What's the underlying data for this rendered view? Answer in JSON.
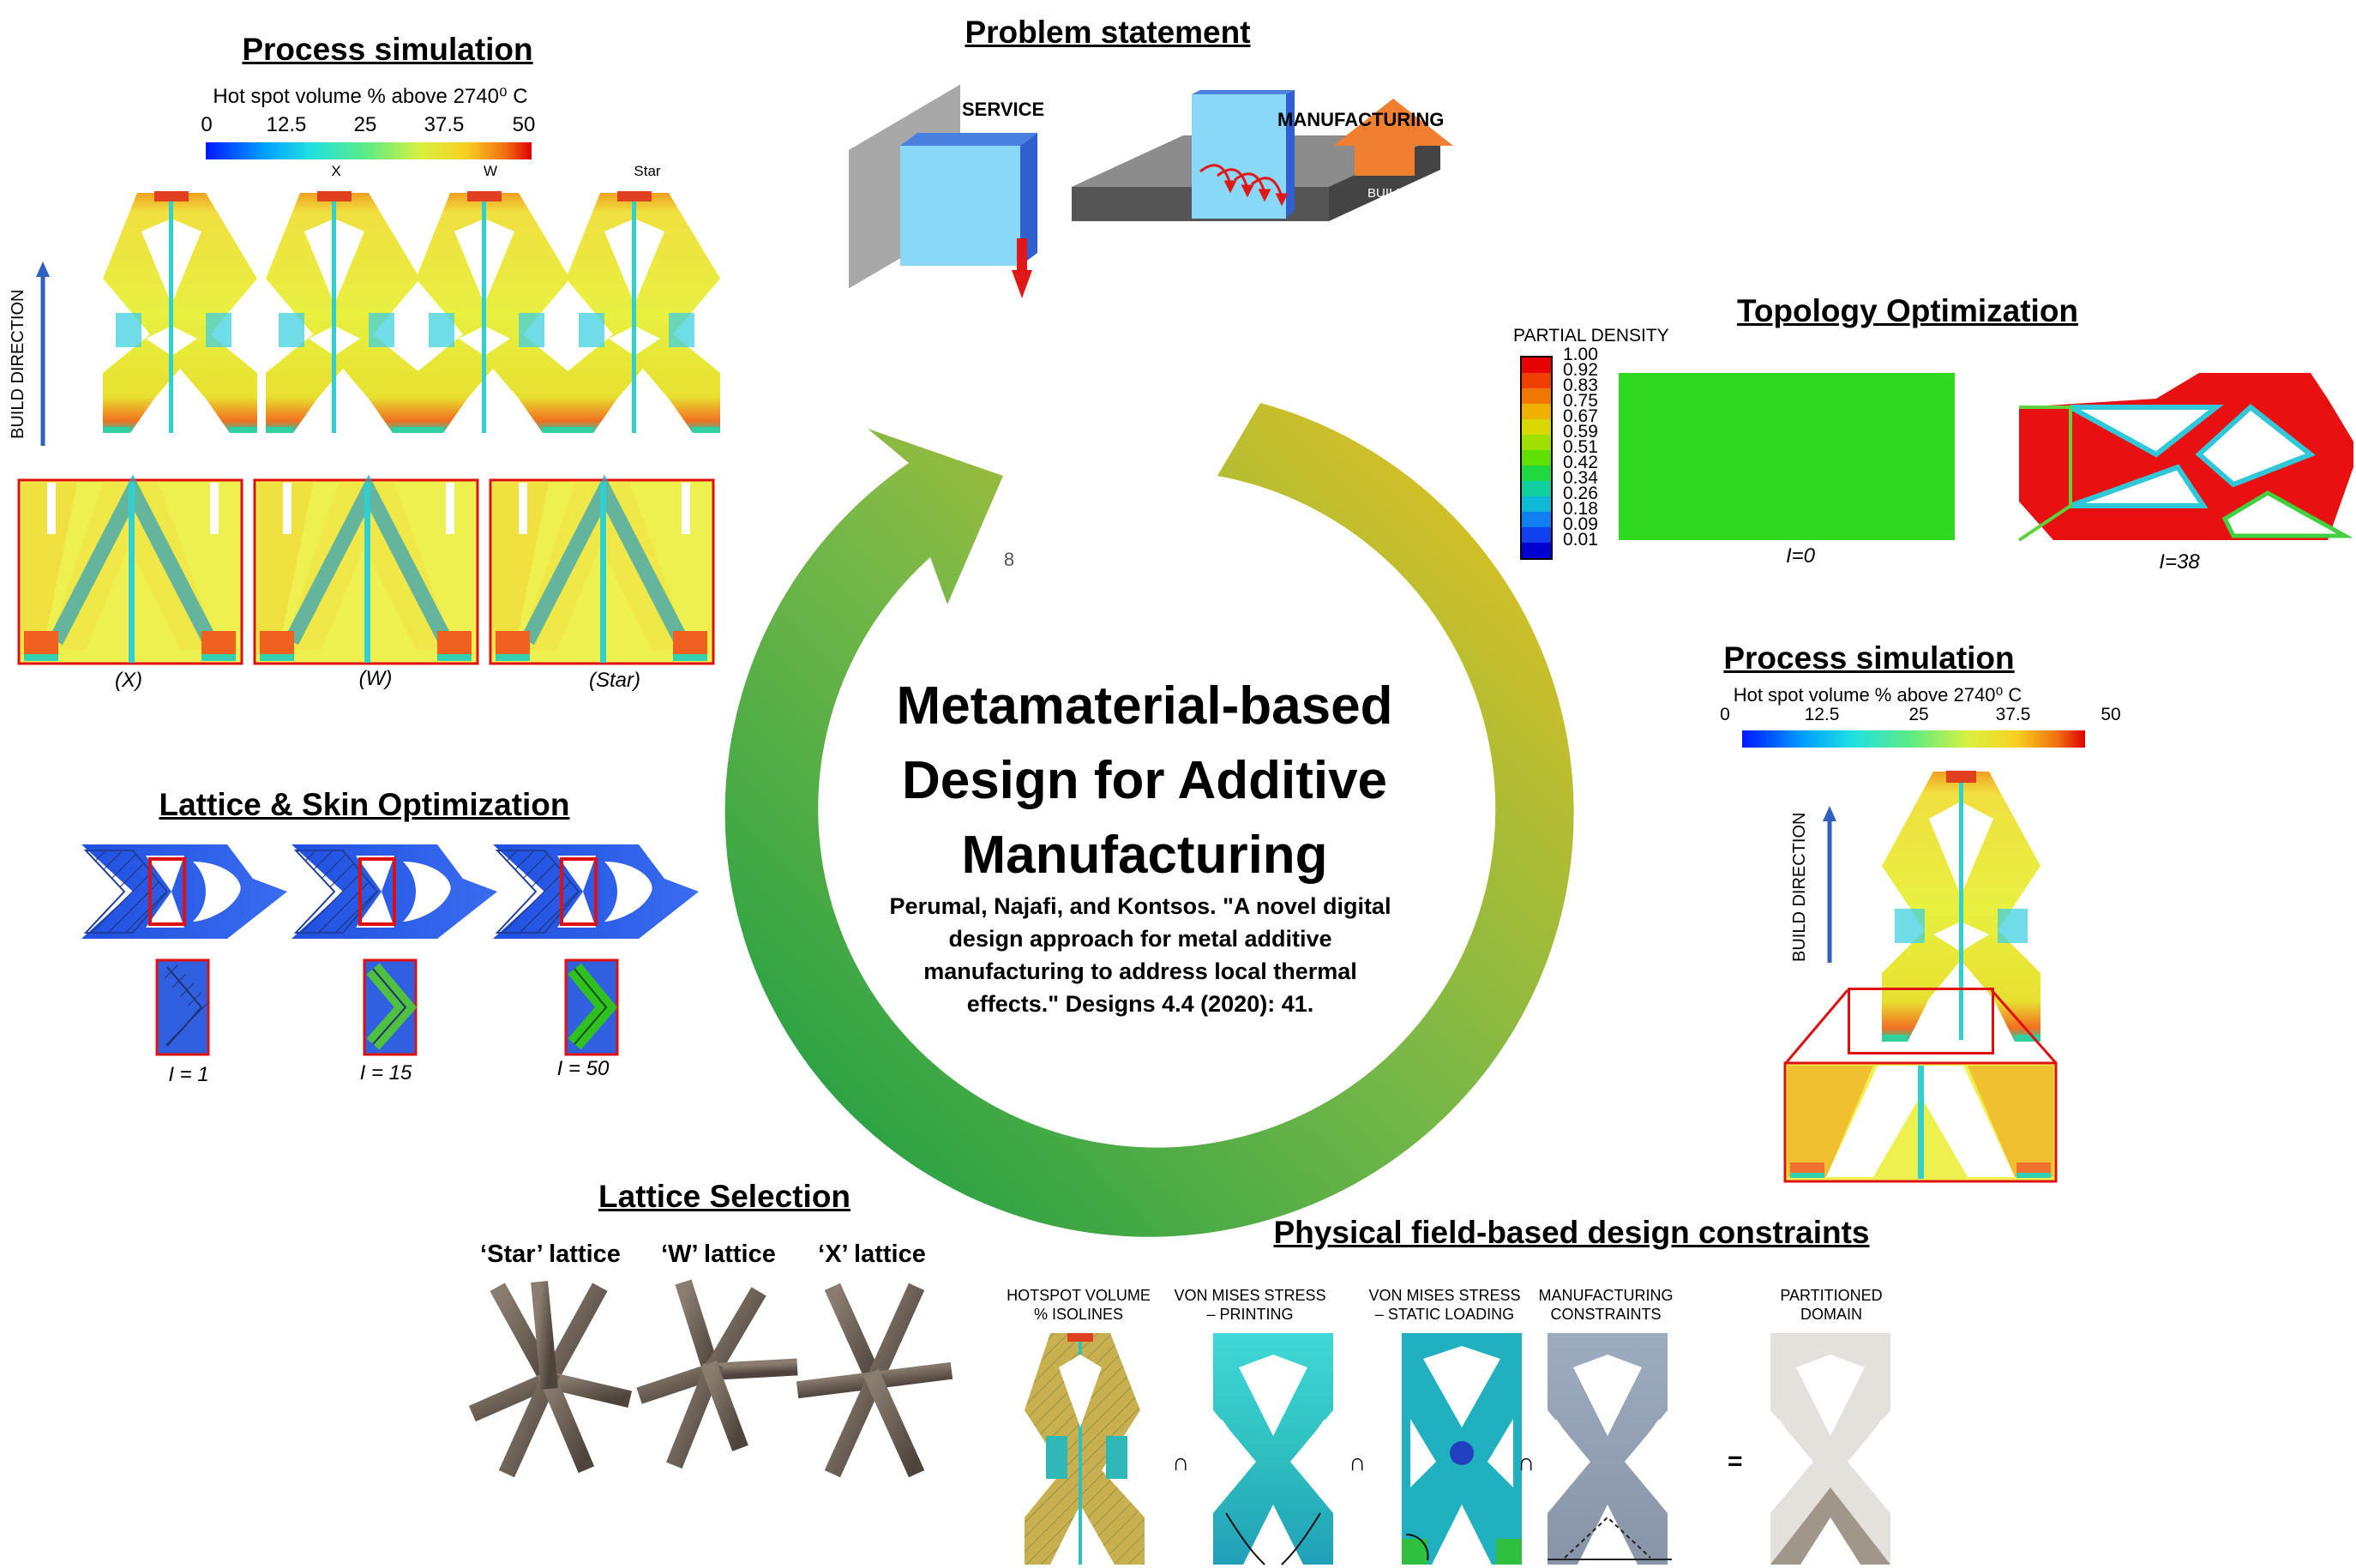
{
  "center": {
    "title_lines": [
      "Metamaterial-based",
      "Design for Additive",
      "Manufacturing"
    ],
    "citation_lines": [
      "Perumal, Najafi, and Kontsos. \"A novel digital",
      "design approach for metal additive",
      "manufacturing to address local thermal",
      "effects.\" Designs 4.4 (2020): 41."
    ],
    "cycle_number": "8"
  },
  "problem": {
    "title": "Problem statement",
    "service_label": "SERVICE",
    "manufacturing_label": "MANUFACTURING",
    "build_label": "BUILD"
  },
  "process_top": {
    "title": "Process simulation",
    "legend_title": "Hot spot volume % above 2740⁰ C",
    "ticks": [
      "0",
      "12.5",
      "25",
      "37.5",
      "50"
    ],
    "lattice_labels": [
      "X",
      "W",
      "Star"
    ],
    "build_direction": "BUILD DIRECTION",
    "captions": [
      "(X)",
      "(W)",
      "(Star)"
    ]
  },
  "topology": {
    "title": "Topology Optimization",
    "legend_title": "PARTIAL DENSITY",
    "legend_values": [
      "1.00",
      "0.92",
      "0.83",
      "0.75",
      "0.67",
      "0.59",
      "0.51",
      "0.42",
      "0.34",
      "0.26",
      "0.18",
      "0.09",
      "0.01"
    ],
    "legend_colors": [
      "#e80000",
      "#f04000",
      "#f07800",
      "#f0b000",
      "#d8d800",
      "#a0e000",
      "#60e000",
      "#20d840",
      "#10d0a0",
      "#10b8d8",
      "#1080f0",
      "#1040f0",
      "#0000d0"
    ],
    "captions": [
      "I=0",
      "I=38"
    ]
  },
  "process_right": {
    "title": "Process simulation",
    "legend_title": "Hot spot volume % above 2740⁰ C",
    "ticks": [
      "0",
      "12.5",
      "25",
      "37.5",
      "50"
    ],
    "build_direction": "BUILD DIRECTION"
  },
  "lattice_skin": {
    "title": "Lattice & Skin Optimization",
    "captions": [
      "I = 1",
      "I = 15",
      "I  = 50"
    ]
  },
  "lattice_selection": {
    "title": "Lattice Selection",
    "names": [
      "‘Star’ lattice",
      "‘W’ lattice",
      "‘X’ lattice"
    ]
  },
  "constraints": {
    "title": "Physical field-based design constraints",
    "labels": [
      "HOTSPOT VOLUME\n% ISOLINES",
      "VON MISES STRESS\n– PRINTING",
      "VON MISES STRESS\n– STATIC LOADING",
      "MANUFACTURING\nCONSTRAINTS",
      "PARTITIONED\nDOMAIN"
    ],
    "operators": [
      "∩",
      "∩",
      "∩",
      "="
    ]
  },
  "colors": {
    "arrow_start": "#109a40",
    "arrow_mid": "#7ab848",
    "arrow_end": "#f0c020",
    "frame_red": "#e01010",
    "lattice_gray": "#6e6258"
  }
}
